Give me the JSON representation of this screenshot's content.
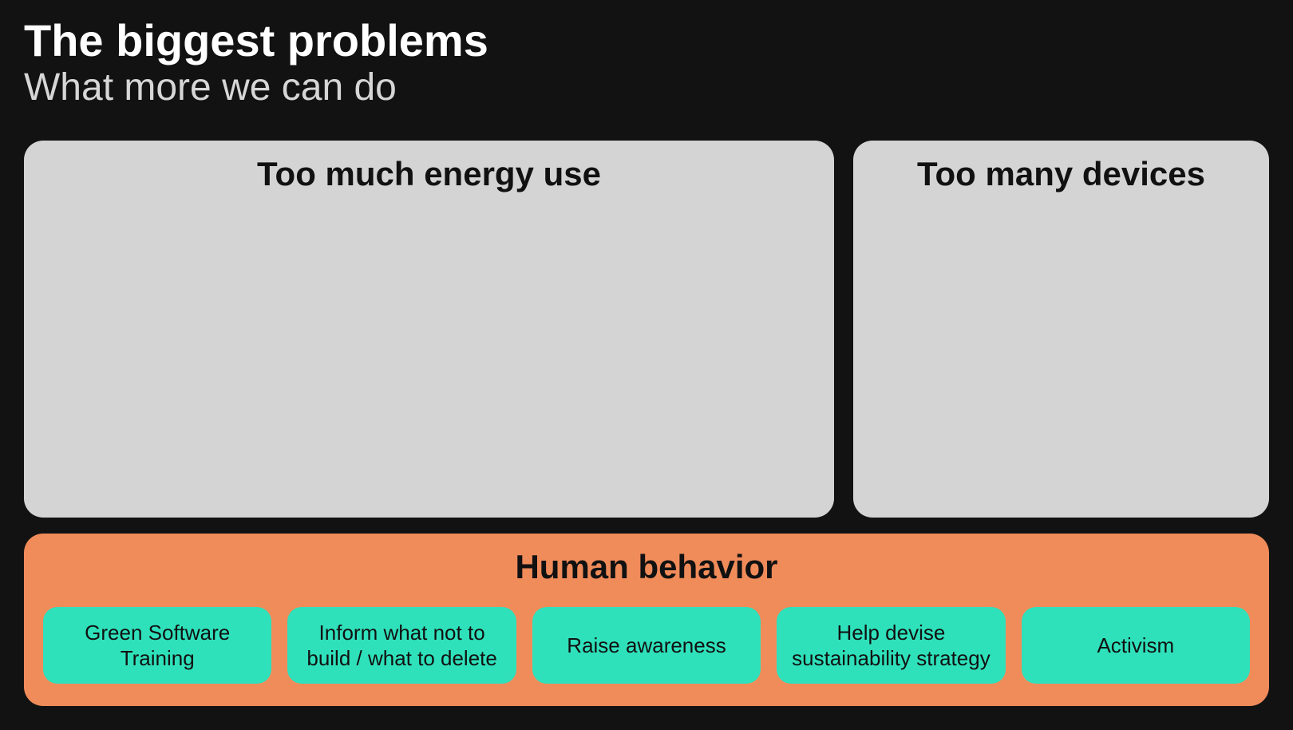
{
  "slide": {
    "background_color": "#121212",
    "title": {
      "text": "The biggest problems",
      "color": "#ffffff",
      "fontsize": 56
    },
    "subtitle": {
      "text": "What more we can do",
      "color": "#d6d6d6",
      "fontsize": 48
    },
    "top_panels": {
      "background_color": "#d4d4d4",
      "border_radius": 24,
      "title_color": "#111111",
      "title_fontsize": 42,
      "energy": {
        "title": "Too much energy use"
      },
      "devices": {
        "title": "Too many devices"
      }
    },
    "bottom_panel": {
      "background_color": "#f08b5a",
      "border_radius": 24,
      "title": "Human behavior",
      "title_color": "#111111",
      "title_fontsize": 42,
      "cards": {
        "background_color": "#2fe1bb",
        "text_color": "#111111",
        "fontsize": 26,
        "border_radius": 18,
        "items": [
          "Green Software Training",
          "Inform what not to build / what to delete",
          "Raise awareness",
          "Help devise sustainability strategy",
          "Activism"
        ]
      }
    }
  }
}
